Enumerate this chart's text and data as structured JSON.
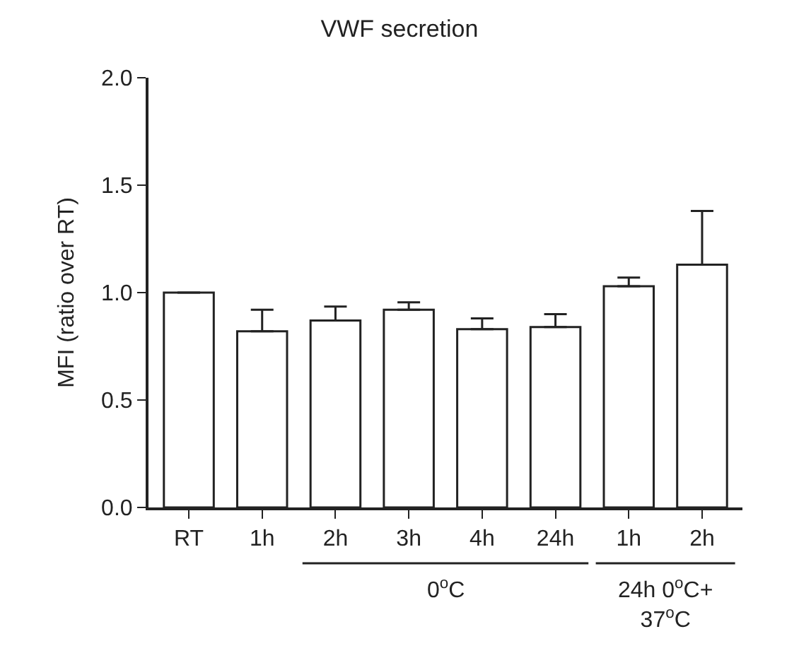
{
  "chart_data": {
    "type": "bar",
    "title": "VWF secretion",
    "ylabel": "MFI (ratio over RT)",
    "categories": [
      "RT",
      "1h",
      "2h",
      "3h",
      "4h",
      "24h",
      "1h",
      "2h"
    ],
    "values": [
      1.0,
      0.82,
      0.87,
      0.92,
      0.83,
      0.84,
      1.03,
      1.13
    ],
    "errors": [
      null,
      [
        0.82,
        0.92
      ],
      [
        0.87,
        0.935
      ],
      [
        0.92,
        0.955
      ],
      [
        0.83,
        0.88
      ],
      [
        0.84,
        0.9
      ],
      [
        1.03,
        1.07
      ],
      [
        1.13,
        1.38
      ]
    ],
    "color": "#ffffff",
    "ylim": [
      0,
      2.0
    ],
    "yticks": [
      {
        "value": 0,
        "label": "0.0"
      },
      {
        "value": 0.5,
        "label": "0.5"
      },
      {
        "value": 1.0,
        "label": "1.0"
      },
      {
        "value": 1.5,
        "label": "1.5"
      },
      {
        "value": 2.0,
        "label": "2.0"
      }
    ],
    "annotations": [
      "0$^{o}$C",
      "24h 0$^{o}$C+\n37$^{o}$C"
    ]
  }
}
